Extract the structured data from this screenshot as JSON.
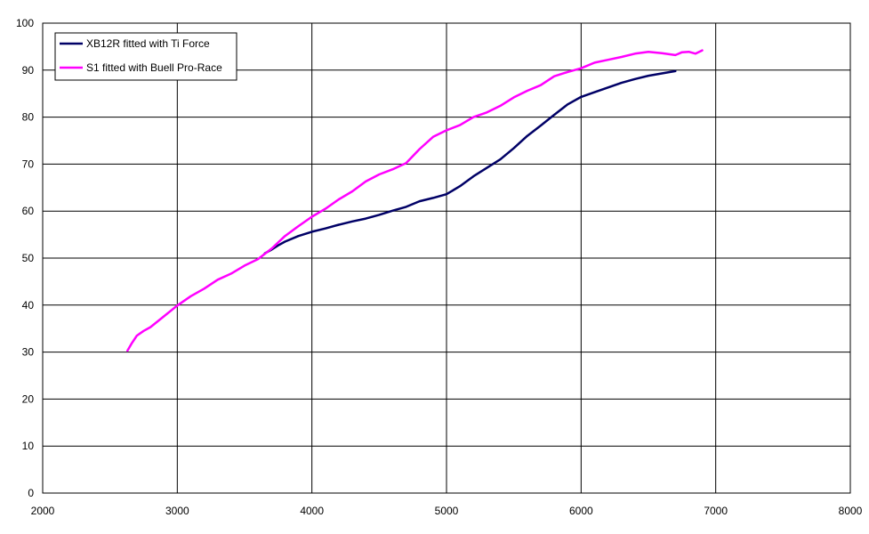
{
  "chart_data": {
    "type": "line",
    "title": "",
    "xlabel": "",
    "ylabel": "",
    "xlim": [
      2000,
      8000
    ],
    "ylim": [
      0,
      100
    ],
    "x_ticks": [
      2000,
      3000,
      4000,
      5000,
      6000,
      7000,
      8000
    ],
    "y_ticks": [
      0,
      10,
      20,
      30,
      40,
      50,
      60,
      70,
      80,
      90,
      100
    ],
    "grid": true,
    "legend_position": "top-left",
    "series": [
      {
        "name": "XB12R fitted with Ti Force",
        "color": "#000066",
        "points": [
          [
            3650,
            51
          ],
          [
            3700,
            51.8
          ],
          [
            3750,
            52.7
          ],
          [
            3800,
            53.5
          ],
          [
            3900,
            54.7
          ],
          [
            4000,
            55.6
          ],
          [
            4100,
            56.3
          ],
          [
            4200,
            57.1
          ],
          [
            4300,
            57.8
          ],
          [
            4400,
            58.4
          ],
          [
            4500,
            59.2
          ],
          [
            4600,
            60.1
          ],
          [
            4700,
            60.9
          ],
          [
            4800,
            62.1
          ],
          [
            4900,
            62.8
          ],
          [
            5000,
            63.6
          ],
          [
            5100,
            65.3
          ],
          [
            5200,
            67.4
          ],
          [
            5300,
            69.2
          ],
          [
            5400,
            71.0
          ],
          [
            5500,
            73.4
          ],
          [
            5600,
            76.0
          ],
          [
            5700,
            78.2
          ],
          [
            5800,
            80.5
          ],
          [
            5900,
            82.7
          ],
          [
            6000,
            84.3
          ],
          [
            6100,
            85.3
          ],
          [
            6200,
            86.3
          ],
          [
            6300,
            87.3
          ],
          [
            6400,
            88.1
          ],
          [
            6500,
            88.8
          ],
          [
            6600,
            89.3
          ],
          [
            6700,
            89.8
          ]
        ]
      },
      {
        "name": "S1 fitted with Buell Pro-Race",
        "color": "#ff00ff",
        "points": [
          [
            2630,
            30.3
          ],
          [
            2660,
            31.8
          ],
          [
            2700,
            33.5
          ],
          [
            2750,
            34.5
          ],
          [
            2800,
            35.3
          ],
          [
            2900,
            37.6
          ],
          [
            3000,
            39.9
          ],
          [
            3100,
            41.9
          ],
          [
            3200,
            43.5
          ],
          [
            3300,
            45.4
          ],
          [
            3400,
            46.7
          ],
          [
            3500,
            48.4
          ],
          [
            3600,
            49.8
          ],
          [
            3700,
            52.0
          ],
          [
            3800,
            54.7
          ],
          [
            3900,
            56.8
          ],
          [
            4000,
            58.8
          ],
          [
            4100,
            60.5
          ],
          [
            4200,
            62.5
          ],
          [
            4300,
            64.2
          ],
          [
            4400,
            66.3
          ],
          [
            4500,
            67.8
          ],
          [
            4600,
            68.9
          ],
          [
            4700,
            70.2
          ],
          [
            4800,
            73.2
          ],
          [
            4900,
            75.8
          ],
          [
            5000,
            77.2
          ],
          [
            5100,
            78.3
          ],
          [
            5200,
            80.0
          ],
          [
            5300,
            81.0
          ],
          [
            5400,
            82.4
          ],
          [
            5500,
            84.2
          ],
          [
            5600,
            85.6
          ],
          [
            5700,
            86.8
          ],
          [
            5800,
            88.7
          ],
          [
            5900,
            89.6
          ],
          [
            6000,
            90.4
          ],
          [
            6100,
            91.6
          ],
          [
            6200,
            92.2
          ],
          [
            6300,
            92.8
          ],
          [
            6400,
            93.5
          ],
          [
            6500,
            93.9
          ],
          [
            6600,
            93.6
          ],
          [
            6700,
            93.2
          ],
          [
            6750,
            93.8
          ],
          [
            6800,
            93.9
          ],
          [
            6850,
            93.5
          ],
          [
            6900,
            94.2
          ]
        ]
      }
    ]
  }
}
